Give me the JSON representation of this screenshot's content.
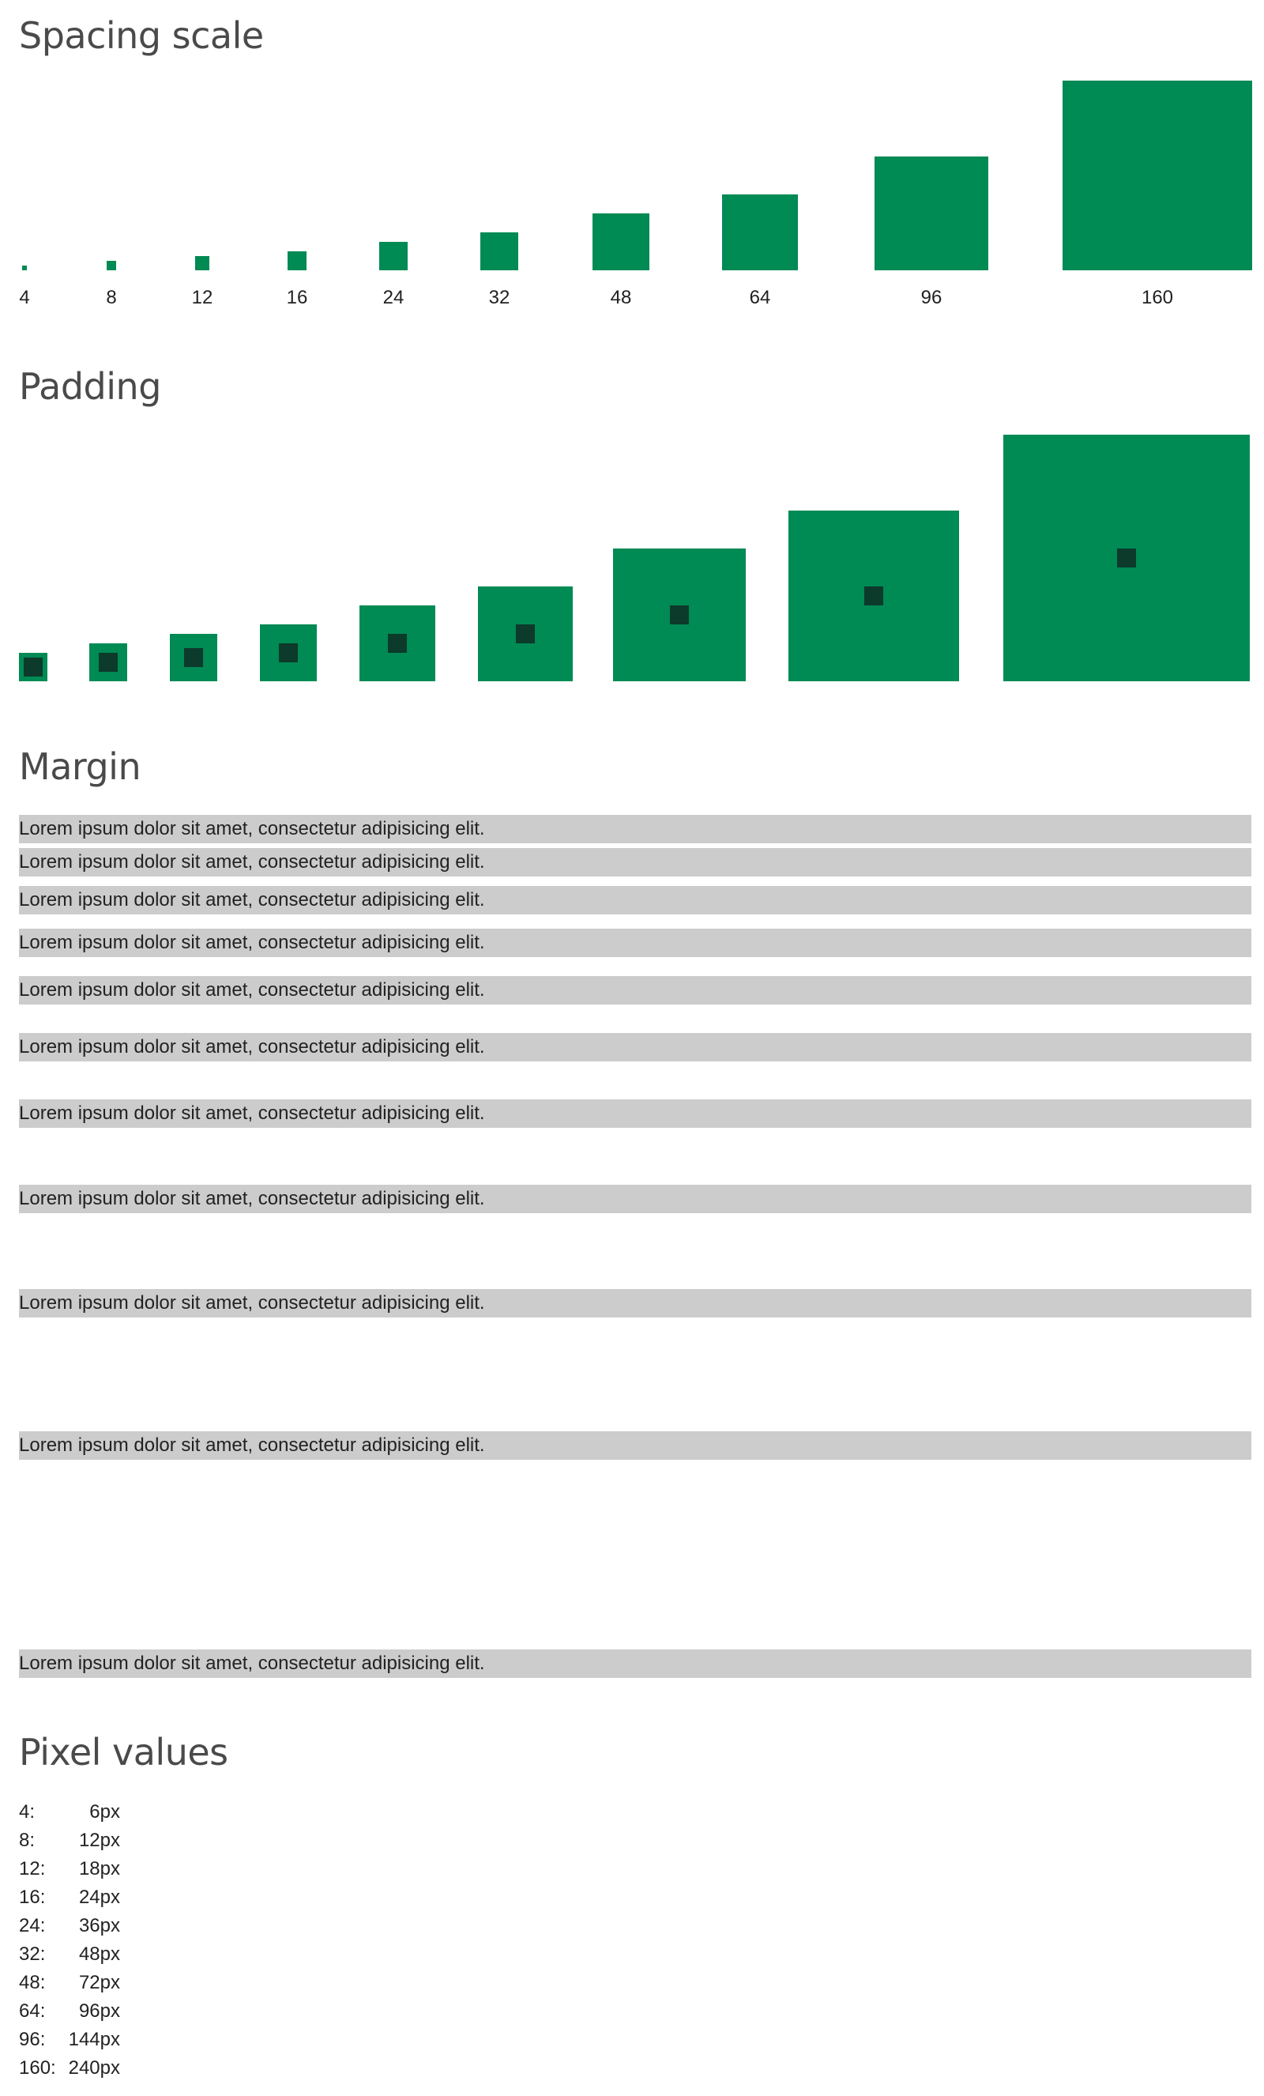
{
  "sections": {
    "spacing_title": "Spacing scale",
    "padding_title": "Padding",
    "margin_title": "Margin",
    "pixel_title": "Pixel values"
  },
  "scale": [
    "4",
    "8",
    "12",
    "16",
    "24",
    "32",
    "48",
    "64",
    "96",
    "160"
  ],
  "margin_text": "Lorem ipsum dolor sit amet, consectetur adipisicing elit.",
  "pixel_values": [
    {
      "key": "4:",
      "value": "6px"
    },
    {
      "key": "8:",
      "value": "12px"
    },
    {
      "key": "12:",
      "value": "18px"
    },
    {
      "key": "16:",
      "value": "24px"
    },
    {
      "key": "24:",
      "value": "36px"
    },
    {
      "key": "32:",
      "value": "48px"
    },
    {
      "key": "48:",
      "value": "72px"
    },
    {
      "key": "64:",
      "value": "96px"
    },
    {
      "key": "96:",
      "value": "144px"
    },
    {
      "key": "160:",
      "value": "240px"
    }
  ],
  "colors": {
    "accent_green": "#008a54",
    "inner_dark": "#0c3a2b",
    "margin_bar": "#cccccc",
    "heading": "#4a4a4a"
  }
}
